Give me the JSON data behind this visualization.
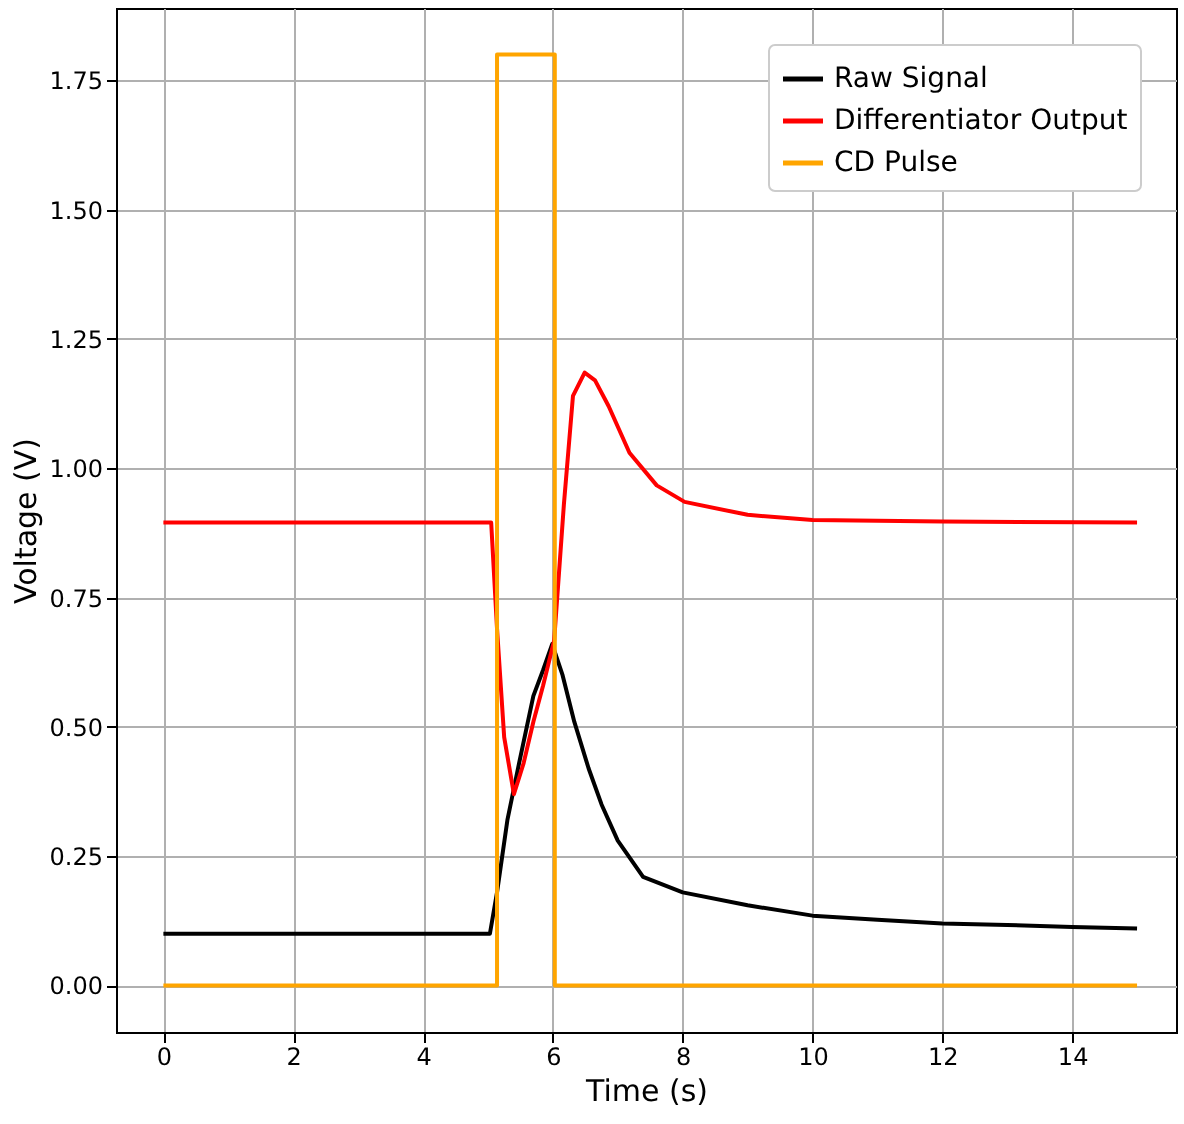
{
  "chart_data": {
    "type": "line",
    "xlabel": "Time (s)",
    "ylabel": "Voltage (V)",
    "xlim": [
      -0.73,
      15.6
    ],
    "ylim": [
      -0.09,
      1.89
    ],
    "xticks": [
      0,
      2,
      4,
      6,
      8,
      10,
      12,
      14
    ],
    "yticks": [
      {
        "value": 0,
        "label": "0.00"
      },
      0.25,
      {
        "value": 0.5,
        "label": "0.50"
      },
      0.75,
      {
        "value": 1,
        "label": "1.00"
      },
      1.25,
      {
        "value": 1.5,
        "label": "1.50"
      },
      1.75
    ],
    "grid": true,
    "legend": "top right",
    "marker": "none",
    "line_style": "solid",
    "series": [
      {
        "name": "Raw Signal",
        "color": "#000000",
        "x": [
          0,
          2,
          4,
          5.03,
          5.14,
          5.3,
          5.48,
          5.7,
          5.85,
          5.99,
          6.15,
          6.33,
          6.55,
          6.75,
          7.0,
          7.39,
          8.0,
          9.0,
          10.0,
          11.0,
          12.0,
          13.0,
          14.0,
          15.0
        ],
        "values": [
          0.1,
          0.1,
          0.1,
          0.1,
          0.18,
          0.32,
          0.43,
          0.56,
          0.61,
          0.66,
          0.6,
          0.51,
          0.42,
          0.35,
          0.28,
          0.21,
          0.18,
          0.155,
          0.135,
          0.127,
          0.12,
          0.117,
          0.113,
          0.11
        ]
      },
      {
        "name": "Differentiator Output",
        "color": "#ff0000",
        "x": [
          0,
          2,
          4,
          5.05,
          5.14,
          5.25,
          5.4,
          5.55,
          5.7,
          5.85,
          6.02,
          6.17,
          6.31,
          6.49,
          6.65,
          6.86,
          7.18,
          7.6,
          8.03,
          9.0,
          10.0,
          12.0,
          15.0
        ],
        "values": [
          0.895,
          0.895,
          0.895,
          0.895,
          0.69,
          0.48,
          0.37,
          0.43,
          0.51,
          0.58,
          0.667,
          0.93,
          1.14,
          1.185,
          1.17,
          1.12,
          1.03,
          0.967,
          0.935,
          0.91,
          0.9,
          0.897,
          0.895
        ]
      },
      {
        "name": "CD Pulse",
        "color": "#ffa500",
        "x": [
          0,
          5.14,
          5.14,
          6.03,
          6.03,
          15.0
        ],
        "values": [
          0.0,
          0.0,
          1.8,
          1.8,
          0.0,
          0.0
        ]
      }
    ]
  }
}
